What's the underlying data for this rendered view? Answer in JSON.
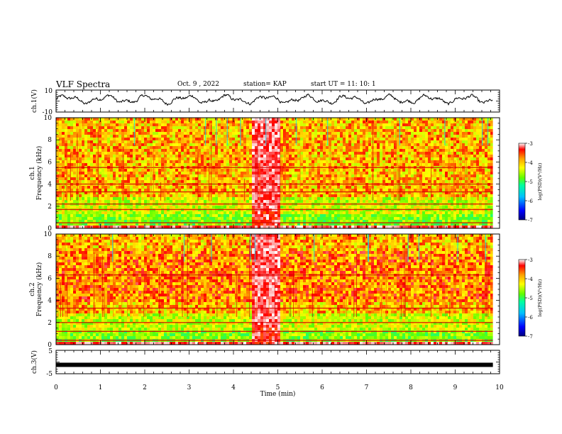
{
  "header": {
    "title": "VLF Spectra",
    "date": "Oct. 9 , 2022",
    "station": "station= KAP",
    "start": "start UT = 11: 10: 1"
  },
  "chart_data": [
    {
      "type": "line",
      "ylabel": "ch.1(V)",
      "ylim": [
        -10,
        10
      ],
      "ytick_labels": [
        "10",
        "-10"
      ],
      "x_range_min": [
        0,
        9.85
      ],
      "description_series": "waveform trace oscillating roughly between -4 and 7 V",
      "series": [
        {
          "color": "#000000"
        }
      ]
    },
    {
      "type": "heatmap",
      "ylabel": "ch.1 Frequency (kHz)",
      "ylim": [
        0,
        10
      ],
      "yticks": [
        "0",
        "2",
        "4",
        "6",
        "8",
        "10"
      ],
      "colorbar": {
        "label": "log(PSD)(V²/Hz)",
        "range": [
          -7,
          -3
        ],
        "ticks": [
          "-3",
          "-4",
          "-5",
          "-6",
          "-7"
        ]
      },
      "features": {
        "broadband_burst_min": [
          4.4,
          5.0
        ],
        "horizontal_lines_khz": [
          5.5,
          4.0,
          3.3,
          2.2,
          1.7,
          0.5
        ]
      }
    },
    {
      "type": "heatmap",
      "ylabel": "ch.2 Frequency (kHz)",
      "ylim": [
        0,
        10
      ],
      "yticks": [
        "0",
        "2",
        "4",
        "6",
        "8",
        "10"
      ],
      "colorbar": {
        "label": "log(PSD)(V²/Hz)",
        "range": [
          -7,
          -3
        ],
        "ticks": [
          "-3",
          "-4",
          "-5",
          "-6",
          "-7"
        ]
      },
      "features": {
        "broadband_burst_min": [
          4.4,
          5.0
        ],
        "horizontal_lines_khz": [
          6.3,
          3.3,
          2.0,
          1.2,
          0.4
        ]
      }
    },
    {
      "type": "line",
      "ylabel": "ch.3(V)",
      "ylim": [
        -5,
        5
      ],
      "ytick_labels": [
        "5",
        "-5"
      ],
      "series": [
        {
          "color": "#000000",
          "level": -1.2
        }
      ]
    }
  ],
  "x_axis": {
    "label": "Time (min)",
    "min": 0,
    "max": 10,
    "ticks": [
      "0",
      "1",
      "2",
      "3",
      "4",
      "5",
      "6",
      "7",
      "8",
      "9",
      "10"
    ]
  },
  "colors": {
    "colormap": [
      "#000080",
      "#0000ff",
      "#00c0ff",
      "#00ffa0",
      "#60ff00",
      "#ffff00",
      "#ffa000",
      "#ff0000",
      "#ffffff"
    ]
  }
}
